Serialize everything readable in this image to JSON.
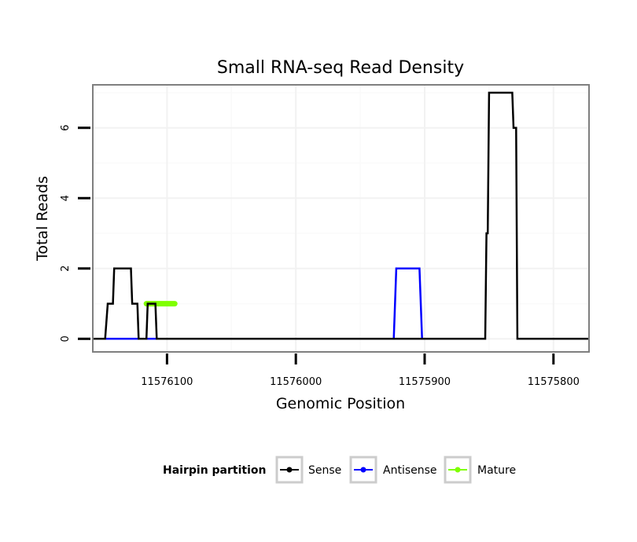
{
  "chart_data": {
    "type": "line",
    "title": "Small RNA-seq Read Density",
    "xlabel": "Genomic Position",
    "ylabel": "Total Reads",
    "x_reversed": true,
    "xlim": [
      11576157,
      11575773
    ],
    "ylim": [
      -0.35,
      7.2
    ],
    "x_ticks": [
      11576100,
      11576000,
      11575900,
      11575800
    ],
    "y_ticks": [
      0,
      2,
      4,
      6
    ],
    "grid": true,
    "legend": {
      "title": "Hairpin partition",
      "position": "bottom",
      "entries": [
        {
          "name": "Sense",
          "color": "#000000"
        },
        {
          "name": "Antisense",
          "color": "#0000ff"
        },
        {
          "name": "Mature",
          "color": "#7fff00"
        }
      ]
    },
    "series": [
      {
        "name": "Sense",
        "color": "#000000",
        "x": [
          11576157,
          11576148,
          11576146,
          11576142,
          11576141,
          11576128,
          11576127,
          11576123,
          11576122,
          11576116,
          11576115,
          11576109,
          11576108,
          11576095,
          11576094,
          11575853,
          11575852,
          11575851,
          11575850,
          11575832,
          11575831,
          11575829,
          11575828,
          11575773
        ],
        "y": [
          0,
          0,
          1,
          1,
          2,
          2,
          1,
          1,
          0,
          0,
          1,
          1,
          0,
          0,
          0,
          0,
          3,
          3,
          7,
          7,
          6,
          6,
          0,
          0
        ]
      },
      {
        "name": "Antisense",
        "color": "#0000ff",
        "x": [
          11576148,
          11575924,
          11575922,
          11575904,
          11575902,
          11575853
        ],
        "y": [
          0,
          0,
          2,
          2,
          0,
          0
        ]
      },
      {
        "name": "Mature",
        "color": "#7fff00",
        "x": [
          11576116,
          11576094
        ],
        "y": [
          1,
          1
        ]
      }
    ]
  }
}
